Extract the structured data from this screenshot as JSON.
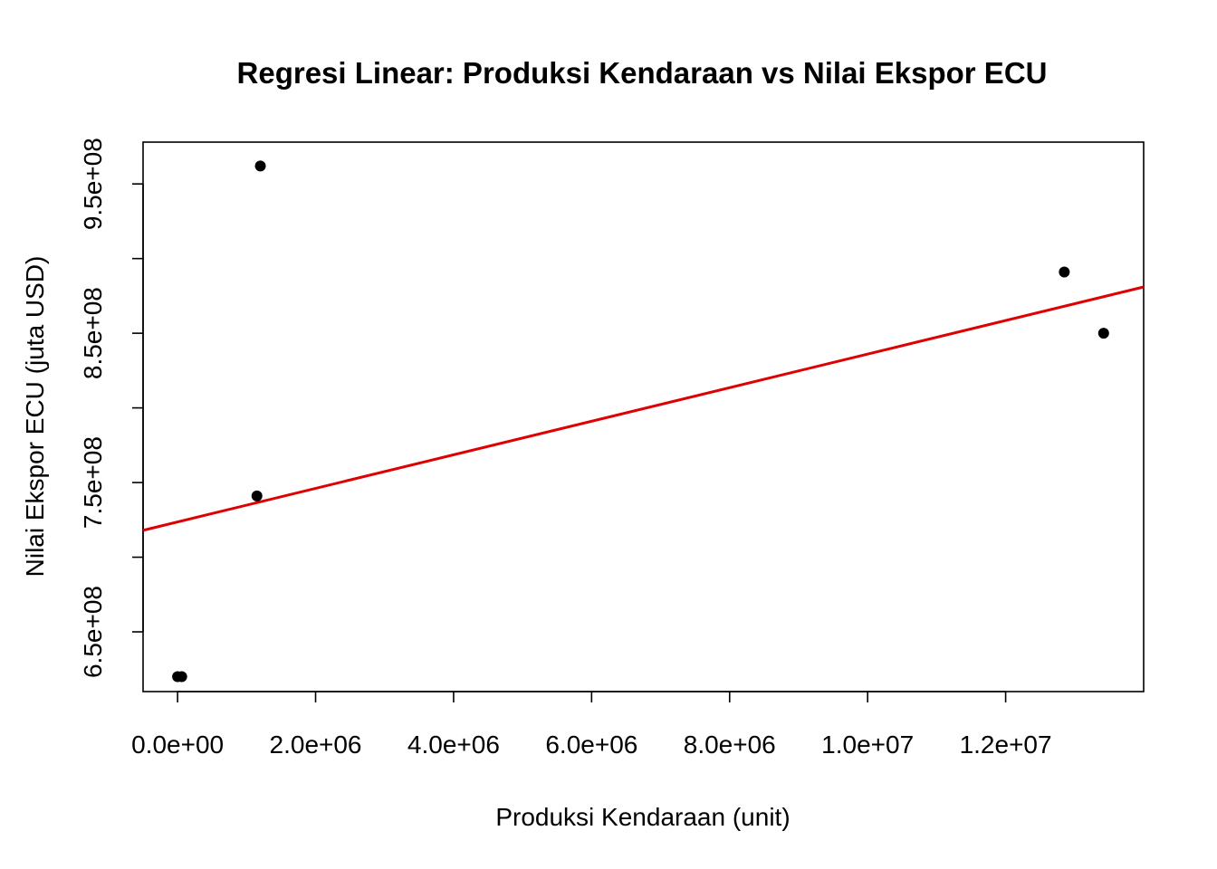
{
  "chart_data": {
    "type": "scatter",
    "title": "Regresi Linear: Produksi Kendaraan vs Nilai Ekspor ECU",
    "xlabel": "Produksi Kendaraan (unit)",
    "ylabel": "Nilai Ekspor ECU (juta USD)",
    "xlim": [
      -500000,
      14000000
    ],
    "ylim": [
      610000000,
      978000000
    ],
    "x_ticks": [
      0,
      2000000,
      4000000,
      6000000,
      8000000,
      10000000,
      12000000
    ],
    "x_tick_labels": [
      "0.0e+00",
      "2.0e+06",
      "4.0e+06",
      "6.0e+06",
      "8.0e+06",
      "1.0e+07",
      "1.2e+07"
    ],
    "y_ticks": [
      650000000,
      700000000,
      750000000,
      800000000,
      850000000,
      900000000,
      950000000
    ],
    "y_tick_labels": [
      "6.5e+08",
      "",
      "7.5e+08",
      "",
      "8.5e+08",
      "",
      "9.5e+08"
    ],
    "grid": false,
    "points": {
      "x": [
        0,
        60000,
        1150000,
        1200000,
        12850000,
        13420000
      ],
      "y": [
        620000000,
        620000000,
        741000000,
        962000000,
        891000000,
        850000000
      ]
    },
    "regression_line": {
      "color": "#e00000",
      "x": [
        -500000,
        14000000
      ],
      "y": [
        718000000,
        881000000
      ]
    },
    "point_color": "#000000"
  }
}
